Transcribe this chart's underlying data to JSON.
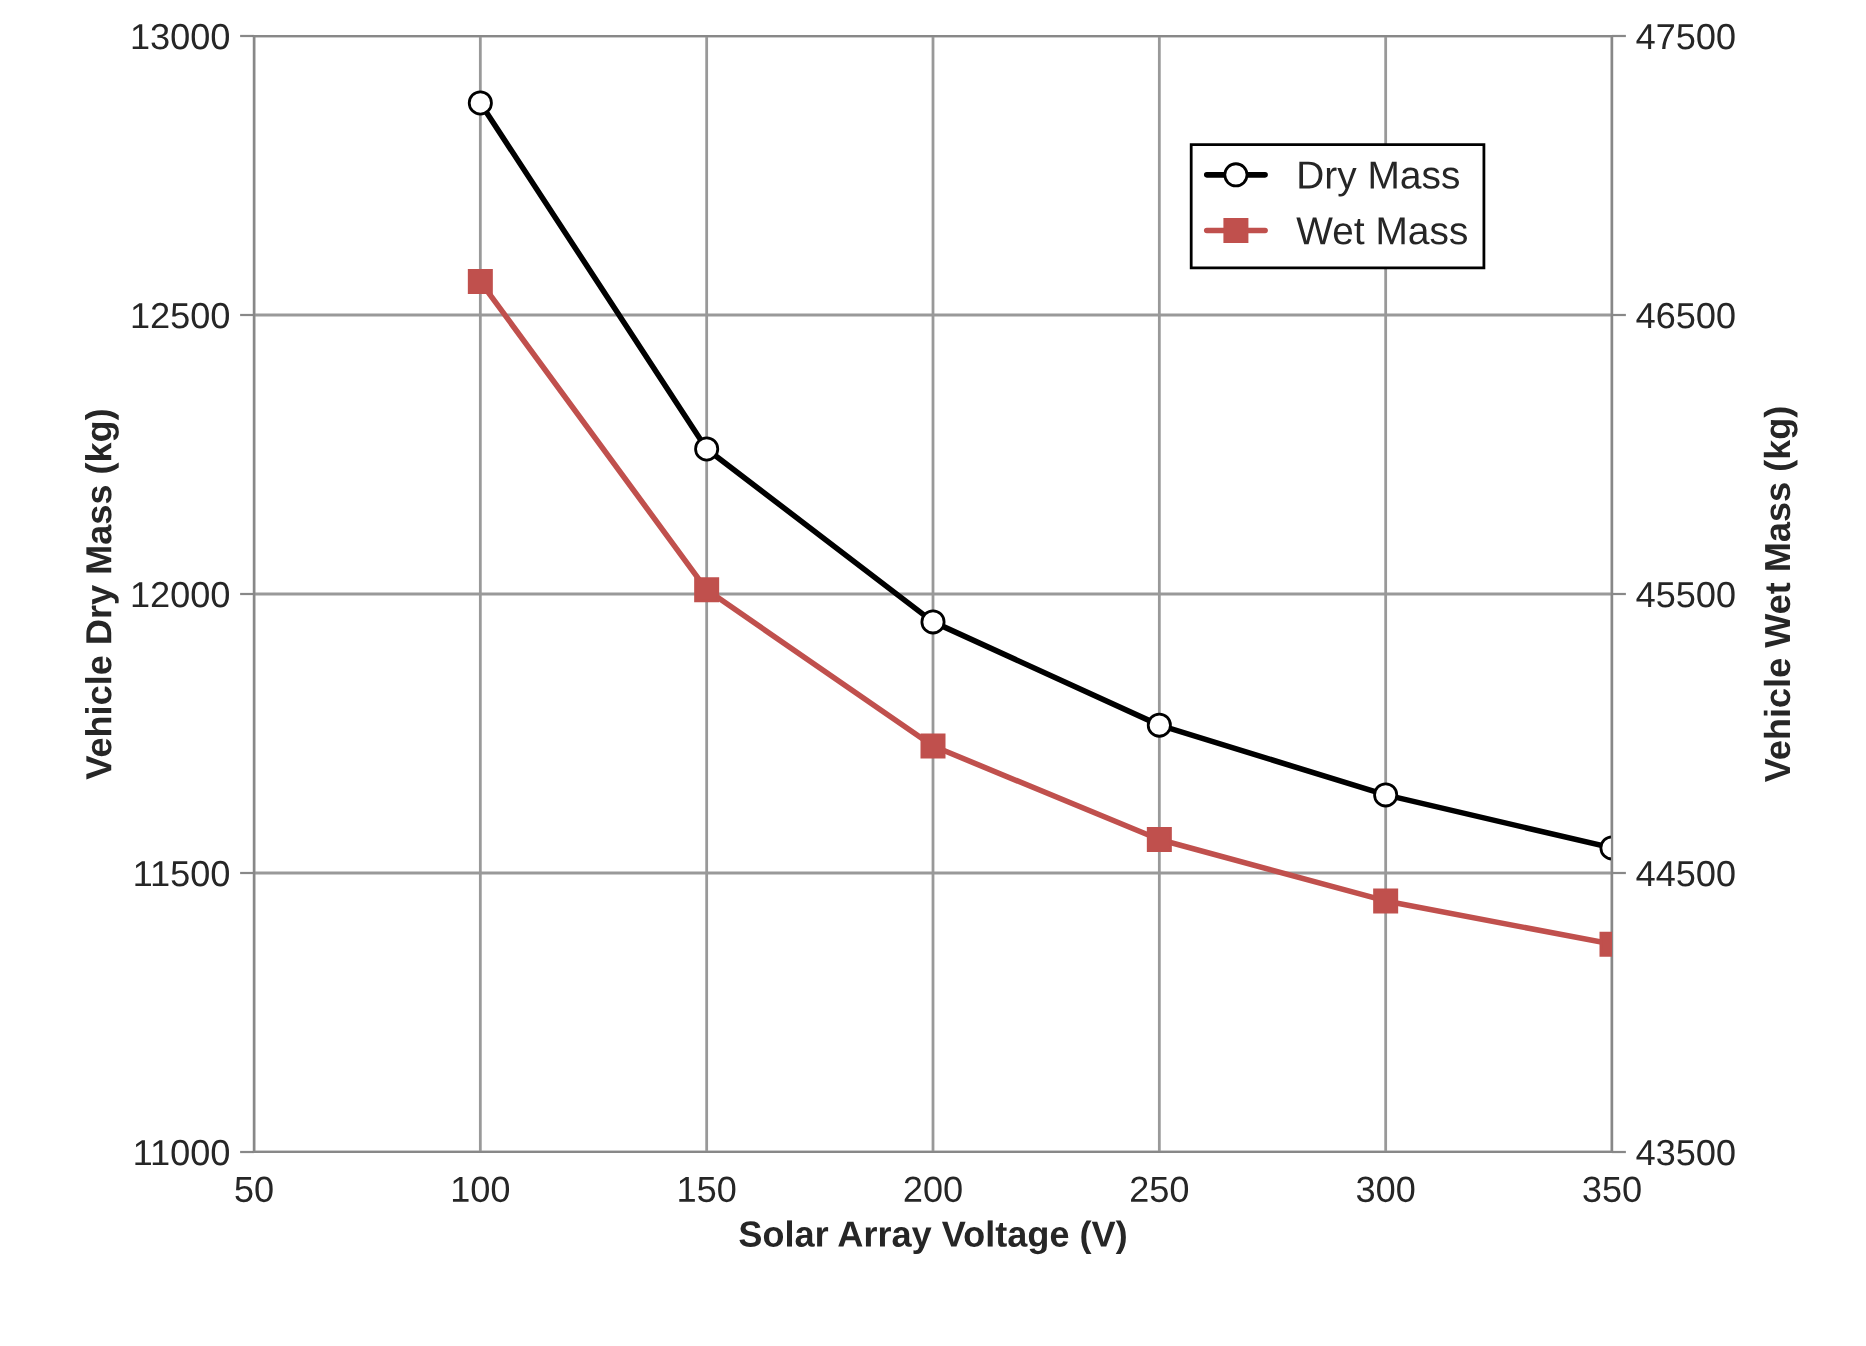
{
  "chart_data": {
    "type": "line",
    "xlabel": "Solar Array Voltage (V)",
    "ylabel": "Vehicle Dry Mass (kg)",
    "y2label": "Vehicle Wet Mass (kg)",
    "x": [
      100,
      150,
      200,
      250,
      300,
      350
    ],
    "series": [
      {
        "name": "Dry Mass",
        "color": "#000000",
        "marker": "circle",
        "values": [
          12880,
          12260,
          11950,
          11765,
          11640,
          11545
        ]
      },
      {
        "name": "Wet Mass",
        "color": "#c0504d",
        "marker": "square",
        "axis": "y2",
        "values": [
          46620,
          45515,
          44955,
          44620,
          44400,
          44245
        ]
      }
    ],
    "xlim": [
      50,
      350
    ],
    "xticks": [
      50,
      100,
      150,
      200,
      250,
      300,
      350
    ],
    "ylim": [
      11000,
      13000
    ],
    "yticks": [
      11000,
      11500,
      12000,
      12500,
      13000
    ],
    "y2lim": [
      43500,
      47500
    ],
    "y2ticks": [
      43500,
      44500,
      45500,
      46500,
      47500
    ],
    "grid": true,
    "legend": "top right"
  }
}
